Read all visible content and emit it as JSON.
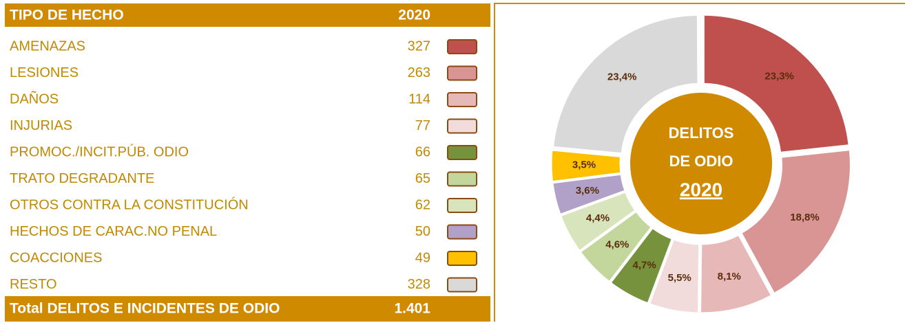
{
  "table": {
    "header": [
      "TIPO DE HECHO",
      "2020"
    ],
    "rows": [
      [
        "AMENAZAS",
        327
      ],
      [
        "LESIONES",
        263
      ],
      [
        "DAÑOS",
        114
      ],
      [
        "INJURIAS",
        77
      ],
      [
        "PROMOC./INCIT.PÚB. ODIO",
        66
      ],
      [
        "TRATO DEGRADANTE",
        65
      ],
      [
        "OTROS CONTRA LA CONSTITUCIÓN",
        62
      ],
      [
        "HECHOS DE CARAC.NO PENAL",
        50
      ],
      [
        "COACCIONES",
        49
      ],
      [
        "RESTO",
        328
      ]
    ],
    "total": [
      "Total DELITOS E INCIDENTES DE ODIO",
      "1.401"
    ]
  },
  "chart_data": {
    "type": "pie",
    "center_text": [
      "DELITOS",
      "DE ODIO",
      "2020"
    ],
    "values": [
      23.3,
      18.8,
      8.1,
      5.5,
      4.7,
      4.6,
      4.4,
      3.6,
      3.5,
      23.4
    ],
    "value_labels": [
      "23,3%",
      "18,8%",
      "8,1%",
      "5,5%",
      "4,7%",
      "4,6%",
      "4,4%",
      "3,6%",
      "3,5%",
      "23,4%"
    ],
    "colors": [
      "#c0504d",
      "#d99594",
      "#e6b8b7",
      "#f2dcdb",
      "#76923c",
      "#c3d69b",
      "#d7e4bc",
      "#b1a0c7",
      "#ffc000",
      "#d9d9d9"
    ]
  }
}
